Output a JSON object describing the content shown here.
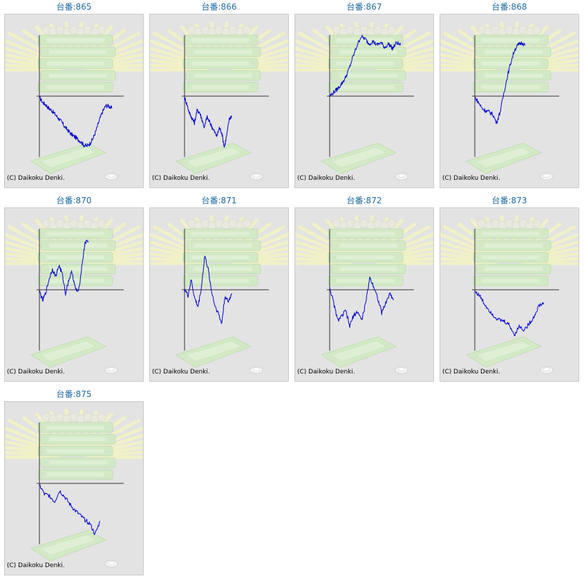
{
  "copyright": "(C) Daikoku Denki.",
  "colors": {
    "title": "#1f6aa0",
    "line": "#0000cc",
    "axis": "#333333",
    "panel_bg": "#e3e3e3"
  },
  "chart_data": [
    {
      "type": "line",
      "title": "台番:865",
      "xlabel": "",
      "ylabel": "",
      "ylim": [
        -1,
        1
      ],
      "x_range": [
        0,
        1
      ],
      "series": [
        {
          "values": [
            -0.02,
            -0.1,
            -0.14,
            -0.2,
            -0.24,
            -0.3,
            -0.36,
            -0.42,
            -0.5,
            -0.56,
            -0.62,
            -0.66,
            -0.7,
            -0.74,
            -0.8,
            -0.82,
            -0.78,
            -0.7,
            -0.56,
            -0.4,
            -0.26,
            -0.16,
            -0.16,
            -0.2
          ]
        }
      ]
    },
    {
      "type": "line",
      "title": "台番:866",
      "xlabel": "",
      "ylabel": "",
      "ylim": [
        -1,
        1
      ],
      "x_range": [
        0,
        1
      ],
      "series": [
        {
          "values": [
            -0.02,
            -0.14,
            -0.28,
            -0.36,
            -0.44,
            -0.24,
            -0.26,
            -0.38,
            -0.52,
            -0.34,
            -0.42,
            -0.5,
            -0.58,
            -0.66,
            -0.52,
            -0.6,
            -0.84,
            -0.64,
            -0.38,
            -0.32
          ]
        }
      ]
    },
    {
      "type": "line",
      "title": "台番:867",
      "xlabel": "",
      "ylabel": "",
      "ylim": [
        -1,
        1
      ],
      "x_range": [
        0,
        1
      ],
      "series": [
        {
          "values": [
            0.0,
            0.06,
            0.12,
            0.2,
            0.3,
            0.46,
            0.66,
            0.84,
            0.98,
            0.94,
            0.86,
            0.9,
            0.84,
            0.88,
            0.8,
            0.86,
            0.78,
            0.88,
            0.84
          ]
        }
      ]
    },
    {
      "type": "line",
      "title": "台番:868",
      "xlabel": "",
      "ylabel": "",
      "ylim": [
        -1,
        1
      ],
      "x_range": [
        0,
        1
      ],
      "series": [
        {
          "values": [
            -0.02,
            -0.1,
            -0.2,
            -0.24,
            -0.26,
            -0.3,
            -0.44,
            -0.26,
            0.04,
            0.32,
            0.56,
            0.76,
            0.84,
            0.88,
            0.84
          ]
        }
      ]
    },
    {
      "type": "line",
      "title": "台番:870",
      "xlabel": "",
      "ylabel": "",
      "ylim": [
        -1,
        1
      ],
      "x_range": [
        0,
        1
      ],
      "series": [
        {
          "values": [
            -0.02,
            -0.18,
            -0.04,
            0.18,
            0.34,
            0.22,
            0.4,
            0.26,
            -0.06,
            0.16,
            0.3,
            0.02,
            -0.04,
            0.38,
            0.78,
            0.8
          ]
        }
      ]
    },
    {
      "type": "line",
      "title": "台番:871",
      "xlabel": "",
      "ylabel": "",
      "ylim": [
        -1,
        1
      ],
      "x_range": [
        0,
        1
      ],
      "series": [
        {
          "values": [
            0.02,
            -0.1,
            0.16,
            -0.14,
            -0.28,
            0.04,
            0.56,
            0.34,
            -0.02,
            -0.26,
            -0.38,
            -0.56,
            -0.1,
            -0.2,
            -0.06
          ]
        }
      ]
    },
    {
      "type": "line",
      "title": "台番:872",
      "xlabel": "",
      "ylabel": "",
      "ylim": [
        -1,
        1
      ],
      "x_range": [
        0,
        1
      ],
      "series": [
        {
          "values": [
            0.04,
            -0.22,
            -0.5,
            -0.44,
            -0.34,
            -0.6,
            -0.42,
            -0.36,
            -0.5,
            -0.22,
            0.2,
            0.06,
            -0.14,
            -0.38,
            -0.22,
            -0.06,
            -0.16
          ]
        }
      ]
    },
    {
      "type": "line",
      "title": "台番:873",
      "xlabel": "",
      "ylabel": "",
      "ylim": [
        -1,
        1
      ],
      "x_range": [
        0,
        1
      ],
      "series": [
        {
          "values": [
            -0.02,
            -0.1,
            -0.24,
            -0.34,
            -0.44,
            -0.5,
            -0.52,
            -0.58,
            -0.74,
            -0.6,
            -0.66,
            -0.56,
            -0.44,
            -0.26,
            -0.22
          ]
        }
      ]
    },
    {
      "type": "line",
      "title": "台番:875",
      "xlabel": "",
      "ylabel": "",
      "ylim": [
        -1,
        1
      ],
      "x_range": [
        0,
        1
      ],
      "series": [
        {
          "values": [
            -0.02,
            -0.18,
            -0.2,
            -0.3,
            -0.12,
            -0.22,
            -0.34,
            -0.44,
            -0.52,
            -0.6,
            -0.66,
            -0.84,
            -0.62
          ]
        }
      ]
    }
  ]
}
